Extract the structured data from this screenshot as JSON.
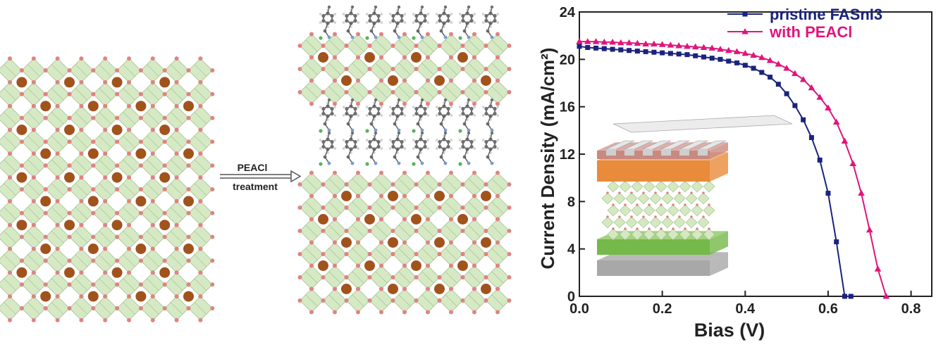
{
  "arrow": {
    "top_label": "PEACl",
    "bottom_label": "treatment"
  },
  "colors": {
    "octahedron_fill": "#d4e8c2",
    "octahedron_edge": "#9cbf86",
    "halide_atom": "#e08383",
    "cation_atom": "#a0531b",
    "carbon_atom": "#6f6f6f",
    "hydrogen_atom": "#cfcfcf",
    "chlorine_atom": "#5bb35b",
    "series_pristine": "#1a237e",
    "series_peacl": "#e0157c",
    "device_contact": "#cfcfcf",
    "device_layer_top": "#c88a80",
    "device_layer_orange": "#e88b3a",
    "device_layer_green": "#74b949",
    "device_layer_bottom": "#a8a8a8"
  },
  "chart_data": {
    "type": "line",
    "xlabel": "Bias (V)",
    "ylabel": "Current Density (mA/cm²)",
    "xlim": [
      0.0,
      0.85
    ],
    "ylim": [
      0,
      24
    ],
    "xticks": [
      "0.0",
      "0.2",
      "0.4",
      "0.6",
      "0.8"
    ],
    "yticks": [
      "0",
      "4",
      "8",
      "12",
      "16",
      "20",
      "24"
    ],
    "legend_position": "top-right",
    "series": [
      {
        "name": "pristine FASnI3",
        "marker": "square",
        "x": [
          0.0,
          0.02,
          0.04,
          0.06,
          0.08,
          0.1,
          0.12,
          0.14,
          0.16,
          0.18,
          0.2,
          0.22,
          0.24,
          0.26,
          0.28,
          0.3,
          0.32,
          0.34,
          0.36,
          0.38,
          0.4,
          0.42,
          0.44,
          0.46,
          0.48,
          0.5,
          0.52,
          0.54,
          0.56,
          0.58,
          0.6,
          0.62,
          0.64,
          0.655
        ],
        "y": [
          21.1,
          21.0,
          20.95,
          20.9,
          20.85,
          20.8,
          20.75,
          20.7,
          20.65,
          20.6,
          20.55,
          20.5,
          20.45,
          20.4,
          20.3,
          20.2,
          20.1,
          20.0,
          19.85,
          19.7,
          19.5,
          19.25,
          18.9,
          18.5,
          17.9,
          17.1,
          16.1,
          14.9,
          13.4,
          11.5,
          8.7,
          4.6,
          0.0,
          0.0
        ]
      },
      {
        "name": "with PEACl",
        "marker": "triangle",
        "x": [
          0.0,
          0.02,
          0.04,
          0.06,
          0.08,
          0.1,
          0.12,
          0.14,
          0.16,
          0.18,
          0.2,
          0.22,
          0.24,
          0.26,
          0.28,
          0.3,
          0.32,
          0.34,
          0.36,
          0.38,
          0.4,
          0.42,
          0.44,
          0.46,
          0.48,
          0.5,
          0.52,
          0.54,
          0.56,
          0.58,
          0.6,
          0.62,
          0.64,
          0.66,
          0.68,
          0.7,
          0.72,
          0.74
        ],
        "y": [
          21.5,
          21.5,
          21.5,
          21.45,
          21.45,
          21.4,
          21.4,
          21.35,
          21.3,
          21.3,
          21.25,
          21.2,
          21.15,
          21.1,
          21.05,
          21.0,
          20.95,
          20.85,
          20.75,
          20.65,
          20.5,
          20.35,
          20.15,
          19.9,
          19.6,
          19.25,
          18.8,
          18.3,
          17.6,
          16.8,
          15.9,
          14.7,
          13.1,
          11.2,
          8.7,
          5.6,
          2.3,
          0.0
        ]
      }
    ]
  }
}
